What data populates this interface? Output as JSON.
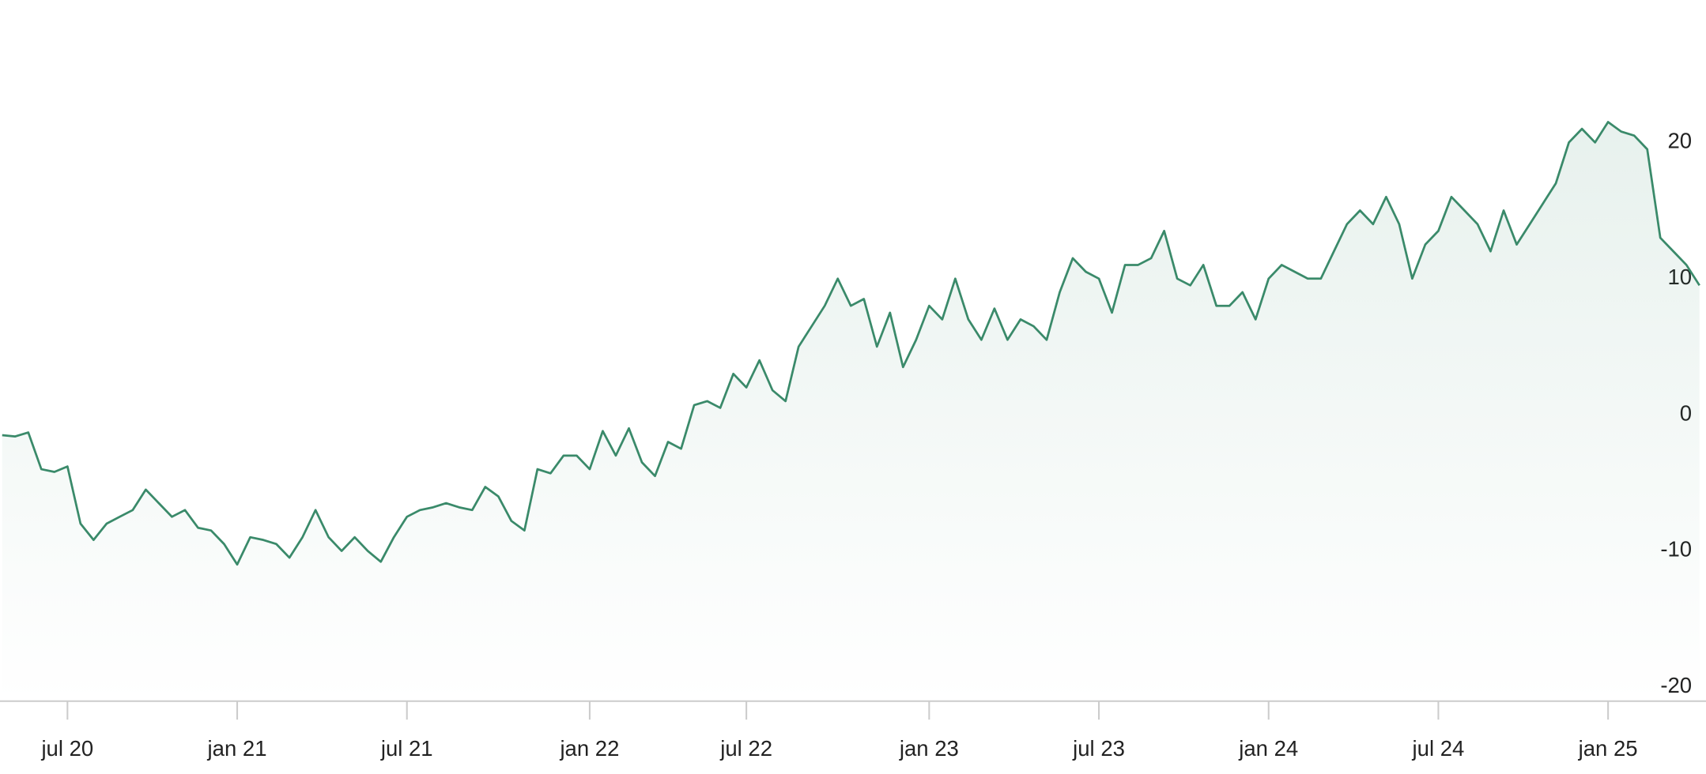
{
  "chart_data": {
    "type": "area",
    "categories": [
      null,
      null,
      null,
      null,
      null,
      "jul 20",
      null,
      null,
      null,
      null,
      null,
      null,
      null,
      null,
      null,
      null,
      null,
      null,
      "jan 21",
      null,
      null,
      null,
      null,
      null,
      null,
      null,
      null,
      null,
      null,
      null,
      null,
      "jul 21",
      null,
      null,
      null,
      null,
      null,
      null,
      null,
      null,
      null,
      null,
      null,
      null,
      null,
      "jan 22",
      null,
      null,
      null,
      null,
      null,
      null,
      null,
      null,
      null,
      null,
      null,
      "jul 22",
      null,
      null,
      null,
      null,
      null,
      null,
      null,
      null,
      null,
      null,
      null,
      null,
      null,
      "jan 23",
      null,
      null,
      null,
      null,
      null,
      null,
      null,
      null,
      null,
      null,
      null,
      null,
      "jul 23",
      null,
      null,
      null,
      null,
      null,
      null,
      null,
      null,
      null,
      null,
      null,
      null,
      "jan 24",
      null,
      null,
      null,
      null,
      null,
      null,
      null,
      null,
      null,
      null,
      null,
      null,
      "jul 24",
      null,
      null,
      null,
      null,
      null,
      null,
      null,
      null,
      null,
      null,
      null,
      null,
      "jan 25",
      null,
      null,
      null,
      null,
      null,
      null,
      null
    ],
    "values": [
      -1.5,
      -1.6,
      -1.3,
      -4,
      -4.2,
      -3.8,
      -8,
      -9.2,
      -8,
      -7.5,
      -7,
      -5.5,
      -6.5,
      -7.5,
      -7,
      -8.3,
      -8.5,
      -9.5,
      -11,
      -9,
      -9.2,
      -9.5,
      -10.5,
      -9,
      -7,
      -9,
      -10,
      -9,
      -10,
      -10.8,
      -9,
      -7.5,
      -7,
      -6.8,
      -6.5,
      -6.8,
      -7,
      -5.3,
      -6,
      -7.8,
      -8.5,
      -4,
      -4.3,
      -3,
      -3,
      -4,
      -1.2,
      -3,
      -1,
      -3.5,
      -4.5,
      -2,
      -2.5,
      0.7,
      1,
      0.5,
      3,
      2,
      4,
      1.8,
      1,
      5,
      6.5,
      8,
      10,
      8,
      8.5,
      5,
      7.5,
      3.5,
      5.5,
      8,
      7,
      10,
      7,
      5.5,
      7.8,
      5.5,
      7,
      6.5,
      5.5,
      9,
      11.5,
      10.5,
      10,
      7.5,
      11,
      11,
      11.5,
      13.5,
      10,
      9.5,
      11,
      8,
      8,
      9,
      7,
      10,
      11,
      10.5,
      10,
      10,
      12,
      14,
      15,
      14,
      16,
      14,
      10,
      12.5,
      13.5,
      16,
      15,
      14,
      12,
      15,
      12.5,
      14,
      15.5,
      17,
      20,
      21,
      20,
      21.5,
      20.8,
      20.5,
      19.5,
      13,
      12,
      11,
      9.5
    ],
    "color": "#3a8a6a",
    "ylim": [
      -20,
      20
    ],
    "yticks": [
      -20,
      -10,
      0,
      10,
      20
    ]
  }
}
